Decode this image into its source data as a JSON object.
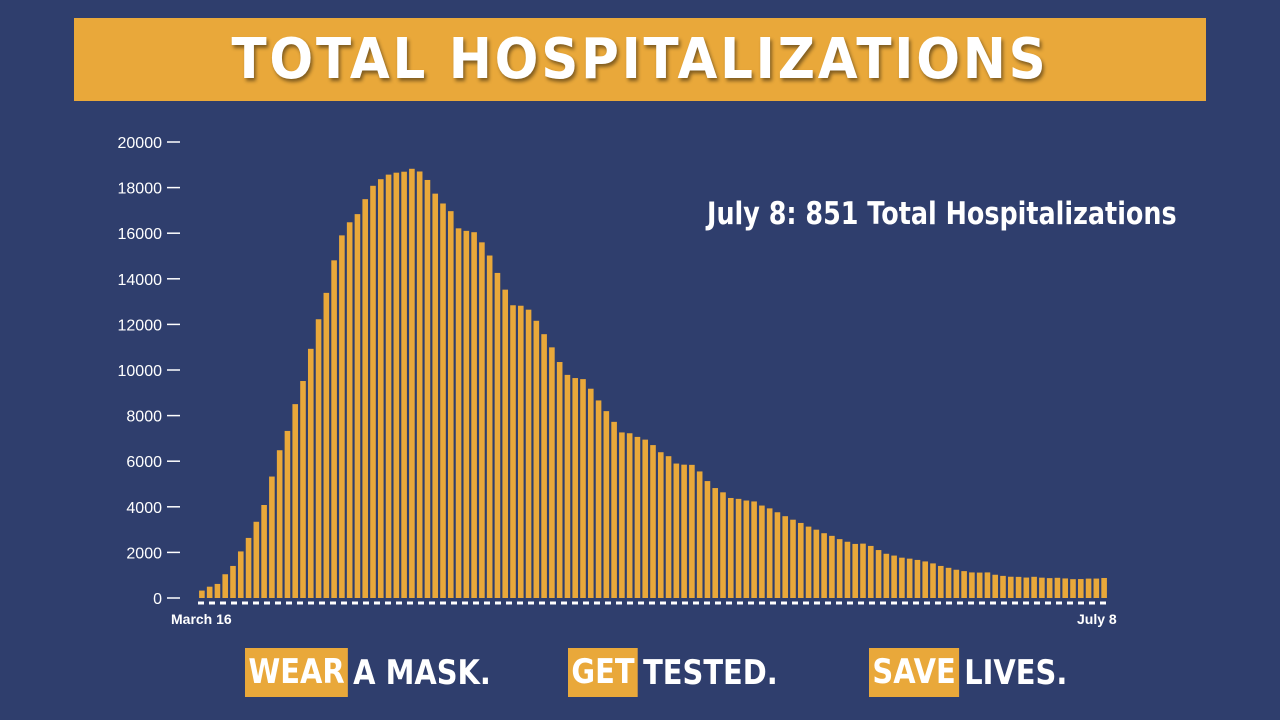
{
  "title": "TOTAL HOSPITALIZATIONS",
  "annotation": "July 8: 851 Total Hospitalizations",
  "slogans": [
    {
      "highlight": "WEAR",
      "rest": "A MASK."
    },
    {
      "highlight": "GET",
      "rest": "TESTED."
    },
    {
      "highlight": "SAVE",
      "rest": "LIVES."
    }
  ],
  "colors": {
    "background": "#2f3e6d",
    "accent": "#e9a83a",
    "text": "#ffffff"
  },
  "chart_data": {
    "type": "bar",
    "title": "TOTAL HOSPITALIZATIONS",
    "x_start_label": "March 16",
    "x_end_label": "July 8",
    "ylim": [
      0,
      20000
    ],
    "y_ticks": [
      "0",
      "2000",
      "4000",
      "6000",
      "8000",
      "10000",
      "12000",
      "14000",
      "16000",
      "18000",
      "20000"
    ],
    "values": [
      326,
      496,
      617,
      1042,
      1406,
      2043,
      2635,
      3343,
      4079,
      5327,
      6481,
      7328,
      8503,
      9517,
      10929,
      12226,
      13383,
      14810,
      15905,
      16479,
      16837,
      17493,
      18079,
      18368,
      18569,
      18654,
      18697,
      18825,
      18707,
      18335,
      17735,
      17303,
      16967,
      16213,
      16103,
      16044,
      15599,
      15021,
      14258,
      13524,
      12839,
      12819,
      12646,
      12159,
      11571,
      10993,
      10350,
      9786,
      9647,
      9600,
      9179,
      8665,
      8196,
      7726,
      7262,
      7226,
      7066,
      6946,
      6706,
      6394,
      6220,
      5897,
      5848,
      5840,
      5551,
      5128,
      4822,
      4635,
      4387,
      4348,
      4276,
      4235,
      4055,
      3931,
      3760,
      3588,
      3434,
      3292,
      3131,
      2997,
      2842,
      2726,
      2582,
      2467,
      2372,
      2385,
      2284,
      2103,
      1940,
      1861,
      1769,
      1726,
      1670,
      1604,
      1518,
      1406,
      1324,
      1240,
      1179,
      1121,
      1115,
      1122,
      1020,
      970,
      933,
      927,
      897,
      930,
      892,
      872,
      886,
      858,
      826,
      831,
      851,
      852,
      878
    ]
  }
}
